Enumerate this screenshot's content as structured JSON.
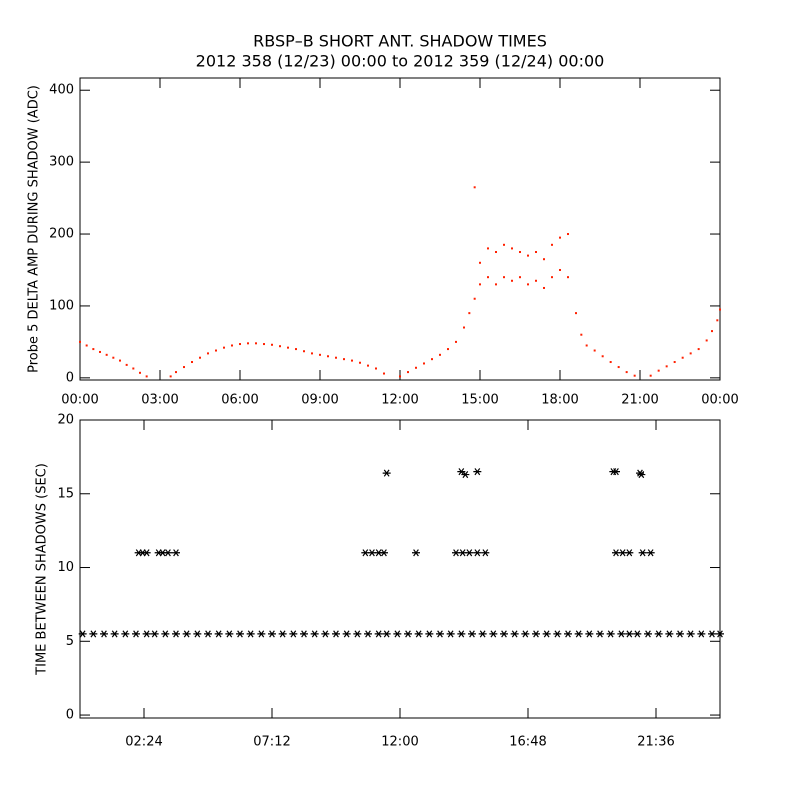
{
  "chart_data": [
    {
      "type": "scatter",
      "title": "RBSP–B SHORT ANT. SHADOW TIMES",
      "subtitle": "2012 358 (12/23) 00:00 to 2012 359 (12/24) 00:00",
      "y_label": "Probe 5 DELTA AMP DURING SHADOW (ADC)",
      "xlim": [
        0,
        24
      ],
      "ylim": [
        -3,
        417
      ],
      "xticks": [
        {
          "value": 0,
          "label": "00:00"
        },
        {
          "value": 3,
          "label": "03:00"
        },
        {
          "value": 6,
          "label": "06:00"
        },
        {
          "value": 9,
          "label": "09:00"
        },
        {
          "value": 12,
          "label": "12:00"
        },
        {
          "value": 15,
          "label": "15:00"
        },
        {
          "value": 18,
          "label": "18:00"
        },
        {
          "value": 21,
          "label": "21:00"
        },
        {
          "value": 24,
          "label": "00:00"
        }
      ],
      "yticks": [
        0,
        100,
        200,
        300,
        400
      ],
      "marker": "dot",
      "series": [
        {
          "color": "#ff2000",
          "x": [
            0,
            0.25,
            0.5,
            0.75,
            1,
            1.25,
            1.5,
            1.75,
            2,
            2.25,
            2.5,
            3.4,
            3.6,
            3.9,
            4.2,
            4.5,
            4.8,
            5.1,
            5.4,
            5.7,
            6.0,
            6.3,
            6.6,
            6.9,
            7.2,
            7.5,
            7.8,
            8.1,
            8.4,
            8.7,
            9.0,
            9.3,
            9.6,
            9.9,
            10.2,
            10.5,
            10.8,
            11.1,
            11.4,
            12.0,
            12.3,
            12.6,
            12.9,
            13.2,
            13.5,
            13.8,
            14.1,
            14.4,
            14.6,
            14.8,
            15.0,
            15.0,
            15.3,
            15.3,
            15.6,
            15.6,
            15.9,
            15.9,
            16.2,
            16.2,
            16.5,
            16.5,
            16.8,
            16.8,
            17.1,
            17.1,
            17.4,
            17.4,
            17.7,
            17.7,
            18.0,
            18.0,
            18.3,
            18.3,
            18.6,
            18.8,
            19.0,
            19.3,
            19.6,
            19.9,
            20.2,
            20.5,
            20.8,
            21.4,
            21.7,
            22.0,
            22.3,
            22.6,
            22.9,
            23.2,
            23.5,
            23.7,
            23.9,
            24,
            14.8
          ],
          "values": [
            50,
            45,
            40,
            36,
            32,
            28,
            24,
            18,
            13,
            7,
            2,
            2,
            8,
            15,
            22,
            28,
            34,
            38,
            42,
            45,
            47,
            48,
            48,
            47,
            46,
            44,
            42,
            40,
            37,
            34,
            32,
            30,
            28,
            26,
            24,
            21,
            17,
            13,
            6,
            2,
            8,
            14,
            20,
            26,
            32,
            40,
            50,
            70,
            90,
            110,
            130,
            160,
            140,
            180,
            130,
            175,
            140,
            185,
            135,
            180,
            140,
            175,
            130,
            170,
            135,
            175,
            125,
            165,
            140,
            185,
            150,
            195,
            140,
            200,
            90,
            60,
            45,
            38,
            30,
            22,
            15,
            8,
            3,
            3,
            10,
            16,
            22,
            28,
            34,
            40,
            52,
            65,
            80,
            95,
            265
          ]
        }
      ]
    },
    {
      "type": "scatter",
      "y_label": "TIME BETWEEN SHADOWS (SEC)",
      "xlim": [
        0,
        24
      ],
      "ylim": [
        -0.2,
        20
      ],
      "xticks": [
        {
          "value": 2.4,
          "label": "02:24"
        },
        {
          "value": 7.2,
          "label": "07:12"
        },
        {
          "value": 12,
          "label": "12:00"
        },
        {
          "value": 16.8,
          "label": "16:48"
        },
        {
          "value": 21.6,
          "label": "21:36"
        }
      ],
      "yticks": [
        0,
        5,
        10,
        15,
        20
      ],
      "marker": "asterisk",
      "series": [
        {
          "color": "#000000",
          "x": [
            0.1,
            0.5,
            0.9,
            1.3,
            1.7,
            2.1,
            2.5,
            2.8,
            3.2,
            3.6,
            4.0,
            4.4,
            4.8,
            5.2,
            5.6,
            6.0,
            6.4,
            6.8,
            7.2,
            7.6,
            8.0,
            8.4,
            8.8,
            9.2,
            9.6,
            10.0,
            10.4,
            10.8,
            11.2,
            11.5,
            11.9,
            12.3,
            12.7,
            13.1,
            13.5,
            13.9,
            14.3,
            14.7,
            15.1,
            15.5,
            15.9,
            16.3,
            16.7,
            17.1,
            17.5,
            17.9,
            18.3,
            18.7,
            19.1,
            19.5,
            19.9,
            20.3,
            20.6,
            20.9,
            21.3,
            21.7,
            22.1,
            22.5,
            22.9,
            23.3,
            23.7,
            24,
            2.2,
            2.35,
            2.5,
            2.95,
            3.1,
            3.3,
            3.6,
            10.7,
            10.95,
            11.2,
            11.4,
            12.6,
            14.1,
            14.35,
            14.6,
            14.9,
            15.2,
            20.1,
            20.35,
            20.6,
            21.1,
            21.4,
            11.5,
            14.3,
            14.45,
            14.9,
            20.0,
            20.1,
            21.0,
            21.05
          ],
          "values": [
            5.5,
            5.5,
            5.5,
            5.5,
            5.5,
            5.5,
            5.5,
            5.5,
            5.5,
            5.5,
            5.5,
            5.5,
            5.5,
            5.5,
            5.5,
            5.5,
            5.5,
            5.5,
            5.5,
            5.5,
            5.5,
            5.5,
            5.5,
            5.5,
            5.5,
            5.5,
            5.5,
            5.5,
            5.5,
            5.5,
            5.5,
            5.5,
            5.5,
            5.5,
            5.5,
            5.5,
            5.5,
            5.5,
            5.5,
            5.5,
            5.5,
            5.5,
            5.5,
            5.5,
            5.5,
            5.5,
            5.5,
            5.5,
            5.5,
            5.5,
            5.5,
            5.5,
            5.5,
            5.5,
            5.5,
            5.5,
            5.5,
            5.5,
            5.5,
            5.5,
            5.5,
            5.5,
            11,
            11,
            11,
            11,
            11,
            11,
            11,
            11,
            11,
            11,
            11,
            11,
            11,
            11,
            11,
            11,
            11,
            11,
            11,
            11,
            11,
            11,
            16.4,
            16.5,
            16.3,
            16.5,
            16.5,
            16.5,
            16.4,
            16.3
          ]
        }
      ]
    }
  ]
}
